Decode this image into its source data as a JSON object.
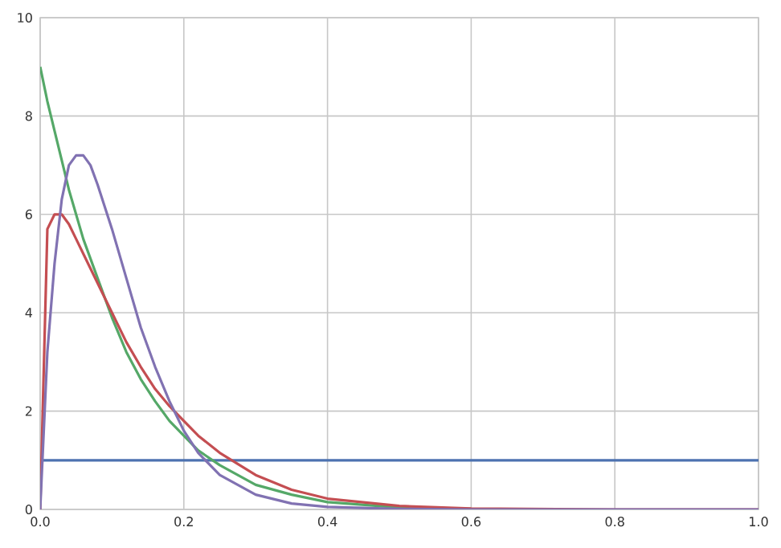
{
  "chart_data": {
    "type": "line",
    "xlim": [
      0,
      1
    ],
    "ylim": [
      0,
      10
    ],
    "xticks": [
      {
        "value": 0,
        "label": "0.0"
      },
      {
        "value": 0.2,
        "label": "0.2"
      },
      {
        "value": 0.4,
        "label": "0.4"
      },
      {
        "value": 0.6,
        "label": "0.6"
      },
      {
        "value": 0.8,
        "label": "0.8"
      },
      {
        "value": 1,
        "label": "1.0"
      }
    ],
    "yticks": [
      0,
      2,
      4,
      6,
      8,
      10
    ],
    "grid": true,
    "marker": "none",
    "line_style": "solid",
    "x": [
      0,
      0.01,
      0.02,
      0.03,
      0.04,
      0.05,
      0.06,
      0.07,
      0.08,
      0.1,
      0.12,
      0.14,
      0.16,
      0.18,
      0.2,
      0.22,
      0.25,
      0.3,
      0.35,
      0.4,
      0.5,
      0.6,
      0.8,
      1.0
    ],
    "series": [
      {
        "color": "#4c72b0",
        "x": [
          0,
          1
        ],
        "values": [
          1,
          1
        ]
      },
      {
        "color": "#55a868",
        "values": [
          9,
          8.3,
          7.7,
          7.1,
          6.5,
          6.0,
          5.5,
          5.1,
          4.7,
          3.9,
          3.2,
          2.65,
          2.2,
          1.8,
          1.5,
          1.2,
          0.9,
          0.5,
          0.3,
          0.15,
          0.04,
          0.01,
          null,
          null
        ]
      },
      {
        "color": "#c44e52",
        "values": [
          0,
          5.7,
          6.0,
          6.0,
          5.8,
          5.5,
          5.2,
          4.9,
          4.6,
          4.0,
          3.4,
          2.9,
          2.45,
          2.1,
          1.8,
          1.5,
          1.15,
          0.7,
          0.4,
          0.22,
          0.07,
          0.02,
          0,
          0
        ]
      },
      {
        "color": "#8172b2",
        "values": [
          0,
          3.2,
          5.0,
          6.3,
          7.0,
          7.2,
          7.2,
          7.0,
          6.6,
          5.7,
          4.7,
          3.7,
          2.9,
          2.2,
          1.6,
          1.15,
          0.7,
          0.3,
          0.12,
          0.05,
          0.01,
          0,
          0,
          0
        ]
      }
    ]
  }
}
